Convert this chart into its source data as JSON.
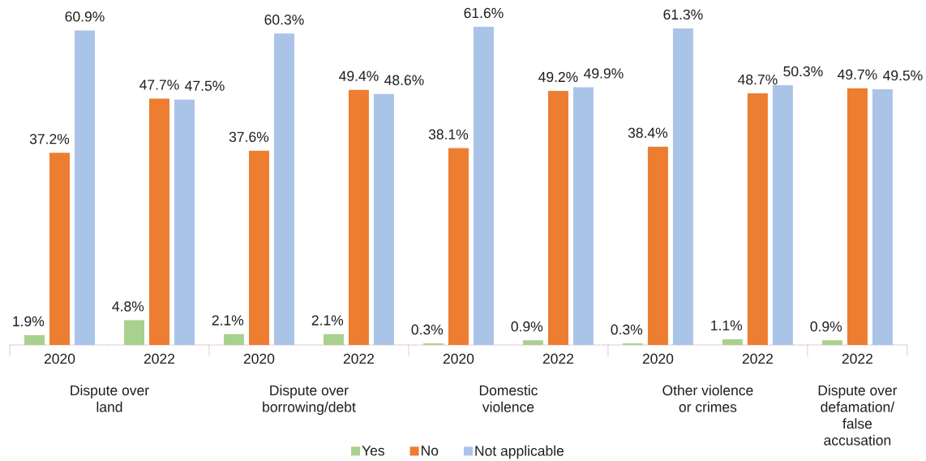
{
  "chart_data": {
    "type": "bar",
    "categories": [
      "2020",
      "2022",
      "2020",
      "2022",
      "2020",
      "2022",
      "2020",
      "2022",
      "2022"
    ],
    "series": [
      {
        "name": "Yes",
        "color": "#a9d18e",
        "values": [
          1.9,
          4.8,
          2.1,
          2.1,
          0.3,
          0.9,
          0.3,
          1.1,
          0.9
        ],
        "value_labels": [
          "1.9%",
          "4.8%",
          "2.1%",
          "2.1%",
          "0.3%",
          "0.9%",
          "0.3%",
          "1.1%",
          "0.9%"
        ]
      },
      {
        "name": "No",
        "color": "#ed7d31",
        "values": [
          37.2,
          47.7,
          37.6,
          49.4,
          38.1,
          49.2,
          38.4,
          48.7,
          49.7
        ],
        "value_labels": [
          "37.2%",
          "47.7%",
          "37.6%",
          "49.4%",
          "38.1%",
          "49.2%",
          "38.4%",
          "48.7%",
          "49.7%"
        ]
      },
      {
        "name": "Not applicable",
        "color": "#aac4e8",
        "values": [
          60.9,
          47.5,
          60.3,
          48.6,
          61.6,
          49.9,
          61.3,
          50.3,
          49.5
        ],
        "value_labels": [
          "60.9%",
          "47.5%",
          "60.3%",
          "48.6%",
          "61.6%",
          "49.9%",
          "61.3%",
          "50.3%",
          "49.5%"
        ]
      }
    ],
    "legend": "bottom",
    "annotations": [
      "Dispute over land",
      "Dispute over borrowing/debt",
      "Domestic violence",
      "Other violence or crimes",
      "Dispute over defamation/ false accusation"
    ]
  }
}
